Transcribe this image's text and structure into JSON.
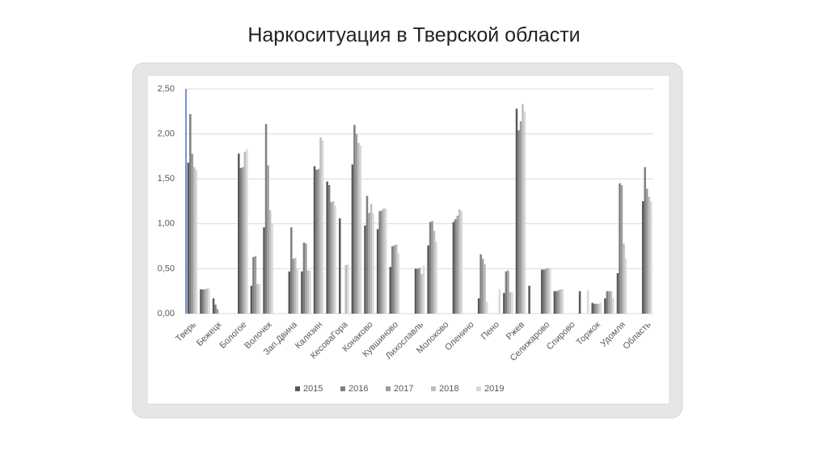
{
  "chart_data": {
    "type": "bar",
    "title": "Наркоситуация в Тверской области",
    "categories": [
      "Тверь",
      null,
      "Бежецк",
      null,
      "Бологое",
      null,
      "Волочек",
      null,
      "Зап.Двина",
      null,
      "Калязин",
      null,
      "КесоваГора",
      null,
      "Конаково",
      null,
      "Кувшиново",
      null,
      "Лихославль",
      null,
      "Молоково",
      null,
      "Оленино",
      null,
      "Пено",
      null,
      "Ржев",
      null,
      "Селижарово",
      null,
      "Спирово",
      null,
      "Торжок",
      null,
      "Удомля",
      null,
      "Область"
    ],
    "series": [
      {
        "name": "2015",
        "color": "#595959",
        "values": [
          1.68,
          0.27,
          0.17,
          null,
          1.78,
          0.31,
          0.96,
          null,
          0.47,
          0.47,
          1.64,
          1.47,
          1.06,
          1.66,
          0.98,
          0.94,
          0.52,
          null,
          0.5,
          0.76,
          null,
          1.02,
          null,
          0.17,
          null,
          0.23,
          2.28,
          0.31,
          0.49,
          0.25,
          null,
          0.25,
          0.12,
          0.17,
          0.45,
          null,
          1.25
        ]
      },
      {
        "name": "2016",
        "color": "#7f7f7f",
        "values": [
          2.22,
          0.27,
          0.1,
          null,
          1.62,
          0.63,
          2.11,
          null,
          0.96,
          0.79,
          1.6,
          1.43,
          null,
          2.1,
          1.31,
          1.14,
          0.75,
          null,
          0.5,
          1.02,
          null,
          1.05,
          null,
          0.66,
          null,
          0.47,
          2.04,
          null,
          0.49,
          0.25,
          null,
          null,
          0.11,
          0.25,
          1.45,
          null,
          1.63
        ]
      },
      {
        "name": "2017",
        "color": "#9e9e9e",
        "values": [
          1.78,
          0.27,
          0.05,
          null,
          1.63,
          0.64,
          1.65,
          null,
          0.61,
          0.78,
          1.61,
          1.24,
          null,
          2.0,
          1.12,
          1.15,
          0.76,
          null,
          0.51,
          1.03,
          null,
          1.09,
          null,
          0.61,
          null,
          0.48,
          2.14,
          null,
          0.5,
          0.26,
          null,
          null,
          0.11,
          0.25,
          1.43,
          null,
          1.39
        ]
      },
      {
        "name": "2018",
        "color": "#bdbdbd",
        "values": [
          1.63,
          0.28,
          null,
          null,
          1.8,
          0.33,
          1.15,
          null,
          0.62,
          0.48,
          1.96,
          1.25,
          0.54,
          1.9,
          1.22,
          1.17,
          0.77,
          null,
          0.44,
          0.92,
          null,
          1.16,
          null,
          0.55,
          null,
          0.24,
          2.33,
          null,
          0.51,
          0.27,
          null,
          null,
          0.11,
          0.25,
          0.78,
          null,
          1.3
        ]
      },
      {
        "name": "2019",
        "color": "#d9d9d9",
        "values": [
          1.6,
          0.28,
          null,
          null,
          1.83,
          0.33,
          1.0,
          null,
          0.5,
          0.48,
          1.93,
          1.2,
          0.55,
          1.87,
          1.12,
          1.17,
          0.67,
          null,
          0.53,
          0.8,
          null,
          1.14,
          null,
          0.13,
          0.27,
          0.24,
          2.25,
          null,
          0.51,
          0.27,
          null,
          0.26,
          0.12,
          0.17,
          0.61,
          null,
          1.25
        ]
      }
    ],
    "ylim": [
      0,
      2.5
    ],
    "yticks": [
      {
        "value": 0,
        "label": "0,00"
      },
      {
        "value": 0.5,
        "label": "0,50"
      },
      {
        "value": 1,
        "label": "1,00"
      },
      {
        "value": 1.5,
        "label": "1,50"
      },
      {
        "value": 2,
        "label": "2,00"
      },
      {
        "value": 2.5,
        "label": "2,50"
      }
    ],
    "grid": true
  }
}
